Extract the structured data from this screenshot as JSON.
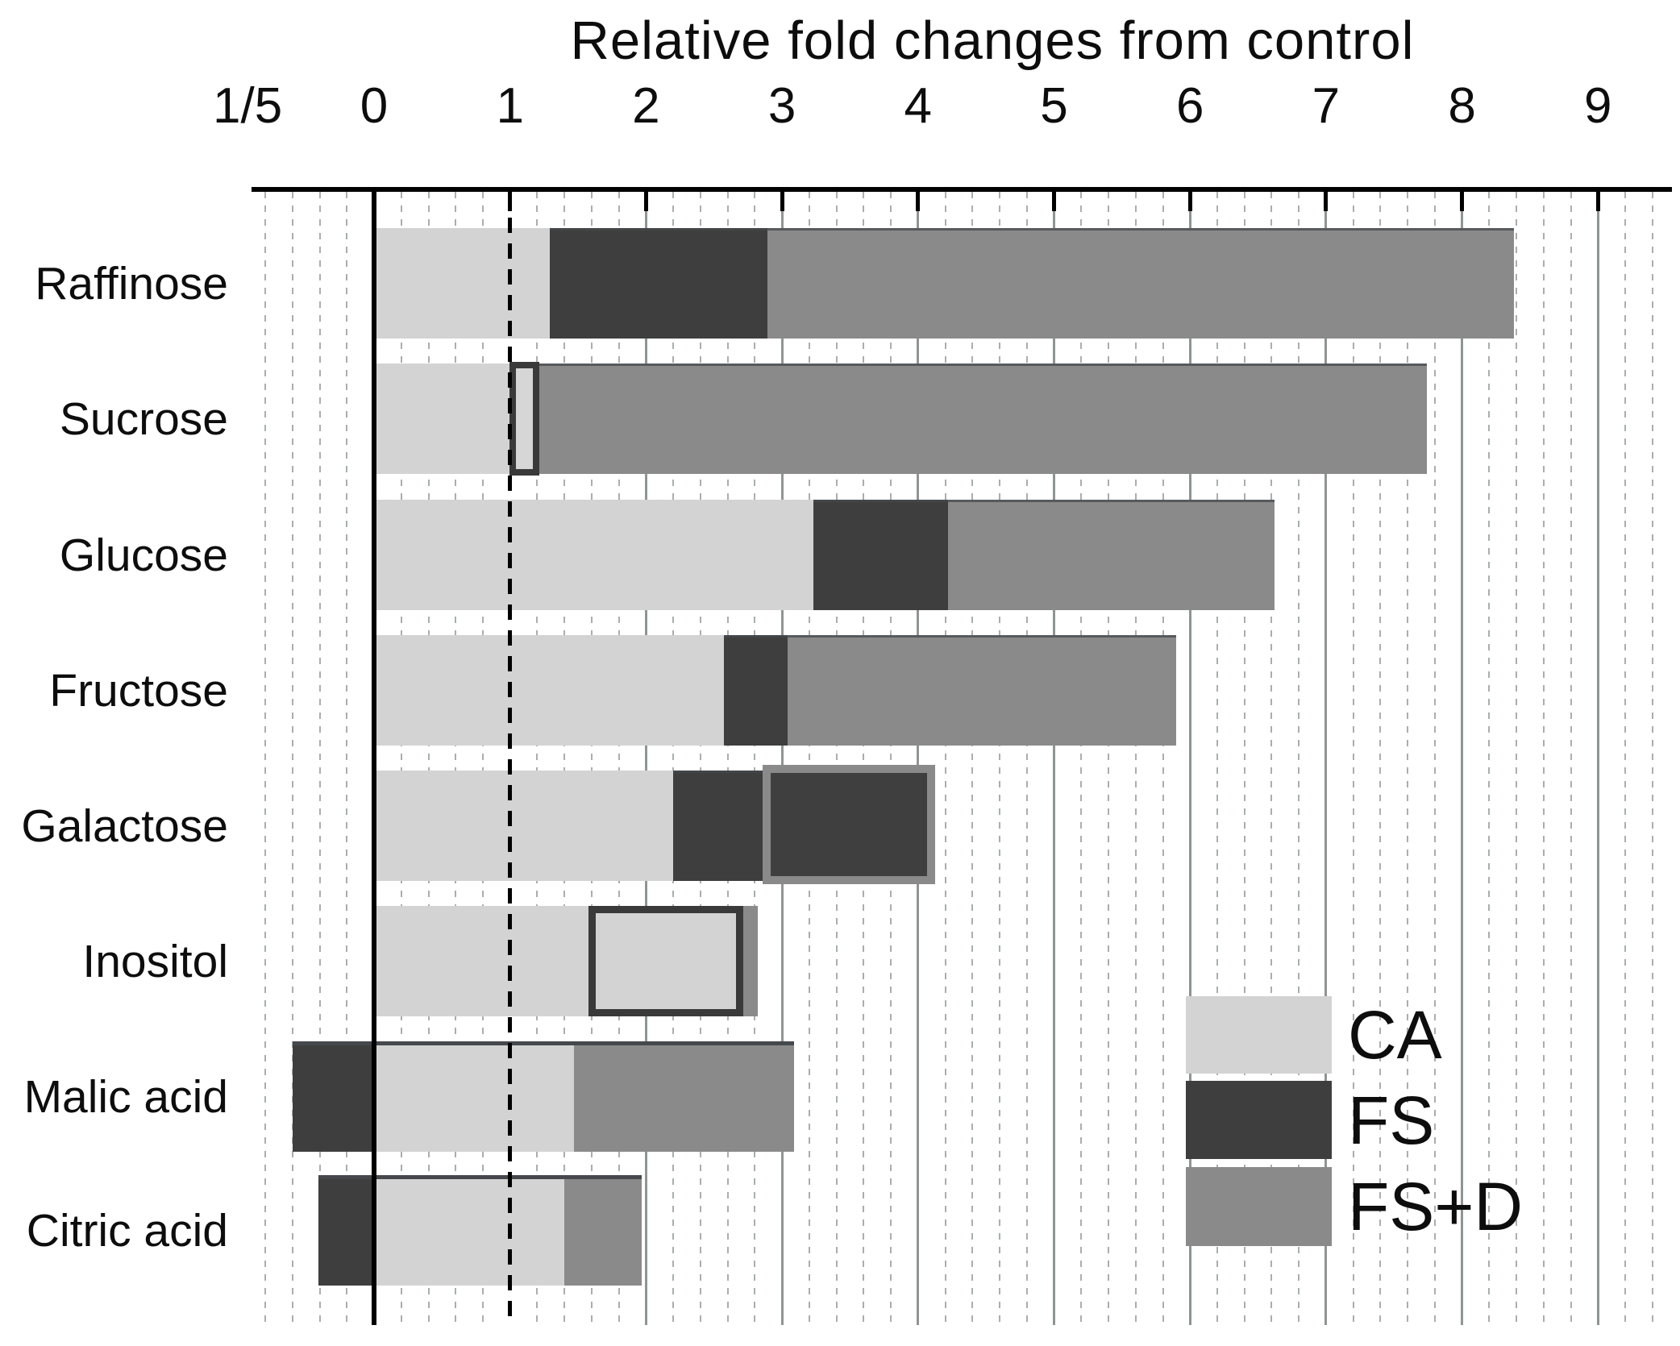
{
  "title": "Relative fold changes from control",
  "axis": {
    "tick_labels": [
      "1/5",
      "0",
      "1",
      "2",
      "3",
      "4",
      "5",
      "6",
      "7",
      "8",
      "9"
    ],
    "tick_values": [
      -0.93,
      0,
      1,
      2,
      3,
      4,
      5,
      6,
      7,
      8,
      9
    ],
    "left_side_label": "1/5",
    "zero_line_value": 0,
    "dashed_reference_value": 1,
    "major_grid_values": [
      2,
      3,
      4,
      5,
      6,
      7,
      8,
      9
    ],
    "minor_grid_step": 0.2,
    "minor_grid_range": [
      -0.8,
      9.4
    ]
  },
  "chart_data": {
    "type": "bar",
    "orientation": "horizontal",
    "title": "Relative fold changes from control",
    "categories": [
      "Raffinose",
      "Sucrose",
      "Glucose",
      "Fructose",
      "Galactose",
      "Inositol",
      "Malic acid",
      "Citric acid"
    ],
    "series": [
      {
        "name": "CA",
        "color": "#d3d3d3",
        "values": [
          1.29,
          1.01,
          3.23,
          2.57,
          2.2,
          1.59,
          1.47,
          1.4
        ]
      },
      {
        "name": "FS",
        "color": "#3e3e3e",
        "values": [
          2.89,
          1.19,
          4.22,
          3.04,
          2.87,
          2.69,
          -0.6,
          -0.41
        ]
      },
      {
        "name": "FS+D",
        "color": "#8a8a8a",
        "values": [
          8.38,
          7.74,
          6.62,
          5.9,
          4.1,
          2.82,
          3.09,
          1.97
        ]
      }
    ],
    "overlay_boxes": [
      {
        "category": "Sucrose",
        "series": "FS",
        "from": 1.01,
        "to": 1.19,
        "fill": "#d6d6d6",
        "border": "#3a3a3a"
      },
      {
        "category": "Galactose",
        "series": "FS+D",
        "from": 2.87,
        "to": 4.1,
        "fill": "#3f3f3f",
        "border": "#8a8a8a"
      },
      {
        "category": "Inositol",
        "series": "FS",
        "from": 1.59,
        "to": 2.69,
        "fill": "#d3d3d3",
        "border": "#3a3a3a"
      }
    ],
    "notes": "Series are drawn overlapping from 0 (not stacked): CA in front, FS behind it, FS+D at back. Negative FS values for Malic acid and Citric acid extend left of 0 toward the reciprocal 1/5 mark. Dashed black vertical reference line at 1.",
    "xlim": [
      -1.0,
      9.5
    ],
    "xlabel": "Relative fold changes from control",
    "ylabel": "",
    "grid": "minor dotted verticals every 0.2, solid gray verticals at integers 2-9",
    "legend_position": "lower right"
  },
  "legend": {
    "items": [
      {
        "label": "CA",
        "color": "#d3d3d3"
      },
      {
        "label": "FS",
        "color": "#3e3e3e"
      },
      {
        "label": "FS+D",
        "color": "#8a8a8a"
      }
    ]
  }
}
